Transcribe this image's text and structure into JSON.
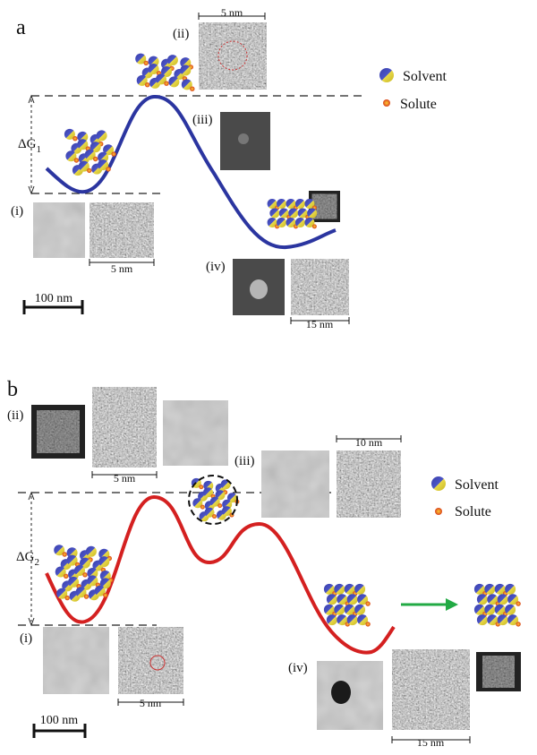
{
  "panels": [
    {
      "label": "a",
      "delta_g": {
        "symbol": "ΔG",
        "subscript": "1"
      },
      "legend": {
        "solvent": "Solvent",
        "solute": "Solute"
      },
      "stages": [
        {
          "label": "(i)",
          "scale": "5 nm"
        },
        {
          "label": "(ii)",
          "scale": "5 nm"
        },
        {
          "label": "(iii)"
        },
        {
          "label": "(iv)",
          "scale": "15 nm"
        }
      ],
      "scale_bar": "100 nm"
    },
    {
      "label": "b",
      "delta_g": {
        "symbol": "ΔG",
        "subscript": "2"
      },
      "legend": {
        "solvent": "Solvent",
        "solute": "Solute"
      },
      "stages": [
        {
          "label": "(i)",
          "scale": "5 nm"
        },
        {
          "label": "(ii)",
          "scale": "5 nm"
        },
        {
          "label": "(iii)",
          "scale": "10 nm"
        },
        {
          "label": "(iv)",
          "scale": "15 nm"
        }
      ],
      "scale_bar": "100 nm"
    }
  ]
}
